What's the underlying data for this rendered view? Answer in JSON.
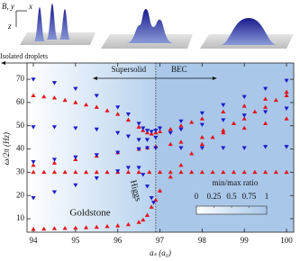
{
  "chart_data": {
    "type": "scatter",
    "x_label": "aₛ (a₀)",
    "y_label": "ω/2π (Hz)",
    "xlim": [
      93.85,
      100.17
    ],
    "ylim": [
      4.2,
      77
    ],
    "xticks": [
      94,
      95,
      96,
      97,
      98,
      99,
      100
    ],
    "yticks": [
      10,
      20,
      30,
      40,
      50,
      60,
      70
    ],
    "vlines": [
      96.9
    ],
    "annotations": {
      "isolated": "Isolated droplets",
      "supersolid": "Supersolid",
      "bec": "BEC",
      "higgs": "Higgs",
      "goldstone": "Goldstone"
    },
    "inset_labels": [
      "B, y",
      "x",
      "z"
    ],
    "colorbar": {
      "label": "min/max ratio",
      "clim": [
        0,
        1
      ],
      "ticks": [
        0,
        0.25,
        0.5,
        0.75,
        1
      ]
    },
    "series": [
      {
        "color": "#e3141c",
        "marker": "triangle-up",
        "x": [
          94,
          94.25,
          94.5,
          94.75,
          95,
          95.25,
          95.5,
          95.75,
          96,
          96.25,
          96.5,
          96.6,
          96.7,
          96.8,
          96.9,
          97,
          97.25,
          97.5,
          97.75,
          98,
          98.5,
          99,
          99.5,
          100
        ],
        "values": [
          63,
          62.5,
          62,
          61,
          60,
          59,
          58,
          56.5,
          55,
          52.5,
          49.5,
          48,
          47,
          46.5,
          47,
          47.5,
          48.5,
          50,
          51.5,
          53,
          56,
          58.5,
          61.5,
          64.5
        ]
      },
      {
        "color": "#e3141c",
        "marker": "triangle-up",
        "x": [
          94,
          94.5,
          95,
          95.5,
          96,
          96.5,
          96.7,
          96.9,
          97.25,
          97.5,
          98,
          98.5,
          99,
          99.5,
          100
        ],
        "values": [
          33,
          34,
          35.5,
          37,
          38.5,
          40,
          40.5,
          41,
          42,
          43,
          45,
          47,
          49,
          51,
          53
        ]
      },
      {
        "color": "#e3141c",
        "marker": "triangle-up",
        "x": [
          94,
          94.25,
          94.5,
          94.75,
          95,
          95.25,
          95.5,
          95.75,
          96,
          96.25,
          96.5,
          96.75,
          97,
          97.25,
          97.5,
          97.75,
          98,
          98.25,
          98.5,
          98.75,
          99,
          99.25,
          99.5,
          99.75,
          100
        ],
        "values": [
          30,
          30,
          30,
          30,
          30,
          30,
          30,
          30,
          30,
          30,
          30,
          30,
          30,
          30,
          30,
          30,
          30,
          30,
          30,
          30,
          30,
          30,
          30,
          30,
          30
        ]
      },
      {
        "color": "#e3141c",
        "marker": "triangle-up",
        "x": [
          94,
          94.25,
          94.5,
          94.75,
          95,
          95.25,
          95.5,
          95.75,
          96,
          96.25,
          96.5,
          96.6,
          96.7,
          96.8,
          96.9,
          97,
          97.25,
          97.5,
          97.75,
          98,
          98.25,
          98.5,
          98.75,
          99,
          99.25,
          99.5,
          99.75,
          100
        ],
        "values": [
          5.5,
          5.6,
          5.8,
          5.9,
          6,
          6.2,
          6.4,
          6.7,
          7,
          7.5,
          8.5,
          9.5,
          11.5,
          15,
          18,
          22,
          28,
          33,
          38,
          42,
          45,
          48,
          51,
          53,
          56,
          58,
          61,
          63
        ]
      },
      {
        "color": "#1c1ccc",
        "marker": "triangle-down",
        "x": [
          94,
          94.5,
          95,
          95.5,
          96,
          96.25,
          96.5,
          96.6,
          96.7,
          96.8,
          96.9,
          97,
          97.5,
          98,
          98.5,
          99,
          99.5,
          100
        ],
        "values": [
          70,
          68.5,
          66,
          63,
          58,
          55,
          51,
          49,
          48,
          47.5,
          48,
          49,
          52,
          55.5,
          59,
          62.5,
          66,
          69.5
        ]
      },
      {
        "color": "#1c1ccc",
        "marker": "triangle-down",
        "x": [
          94,
          94.5,
          95,
          95.5,
          96,
          96.25,
          96.5,
          96.7,
          96.9,
          97.25,
          97.5,
          98,
          98.5,
          99,
          99.5,
          100
        ],
        "values": [
          49.5,
          49.5,
          49,
          48.5,
          47,
          45.5,
          44,
          44,
          45,
          47,
          48.5,
          50.5,
          52.5,
          54.5,
          56,
          57.5
        ]
      },
      {
        "color": "#1c1ccc",
        "marker": "triangle-down",
        "x": [
          94,
          94.5,
          95,
          95.5,
          96,
          96.5,
          96.7,
          96.9,
          97.5,
          98,
          98.5,
          99,
          99.5,
          100
        ],
        "values": [
          34.5,
          35.5,
          36.5,
          37.5,
          38.5,
          40,
          40.5,
          40.5,
          40.5,
          40.5,
          40.5,
          40.5,
          41,
          41
        ]
      },
      {
        "color": "#1c1ccc",
        "marker": "triangle-down",
        "x": [
          94,
          94.5,
          95,
          95.5,
          96,
          96.25,
          96.5,
          96.6,
          96.7,
          96.8,
          96.85
        ],
        "values": [
          19,
          21.5,
          24.5,
          27.5,
          30.5,
          32,
          32,
          29,
          24,
          19,
          17
        ]
      }
    ]
  }
}
